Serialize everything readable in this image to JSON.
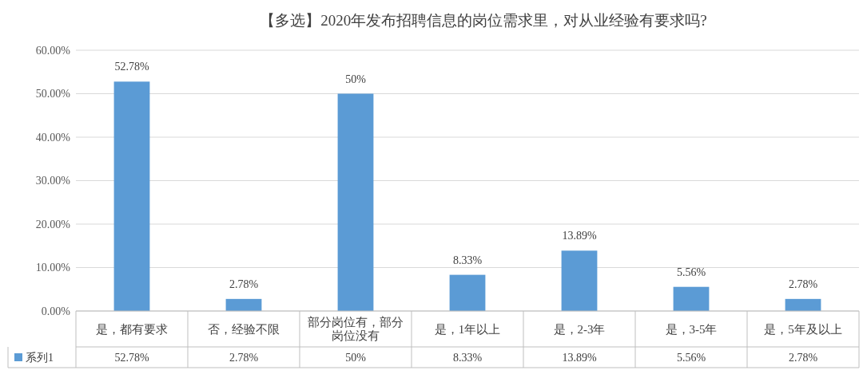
{
  "chart_data": {
    "type": "bar",
    "title": "【多选】2020年发布招聘信息的岗位需求里，对从业经验有要求吗?",
    "categories": [
      "是，都有要求",
      "否，经验不限",
      "部分岗位有，部分岗位没有",
      "是，1年以上",
      "是，2-3年",
      "是，3-5年",
      "是，5年及以上"
    ],
    "series": [
      {
        "name": "系列1",
        "color": "#5b9bd5",
        "values": [
          52.78,
          2.78,
          50,
          8.33,
          13.89,
          5.56,
          2.78
        ],
        "value_labels": [
          "52.78%",
          "2.78%",
          "50%",
          "8.33%",
          "13.89%",
          "5.56%",
          "2.78%"
        ]
      }
    ],
    "ylim": [
      0,
      60
    ],
    "yticks": [
      {
        "value": 0,
        "label": "0.00%"
      },
      {
        "value": 10,
        "label": "10.00%"
      },
      {
        "value": 20,
        "label": "20.00%"
      },
      {
        "value": 30,
        "label": "30.00%"
      },
      {
        "value": 40,
        "label": "40.00%"
      },
      {
        "value": 50,
        "label": "50.00%"
      },
      {
        "value": 60,
        "label": "60.00%"
      }
    ],
    "grid": "y",
    "legend": "bottom"
  }
}
